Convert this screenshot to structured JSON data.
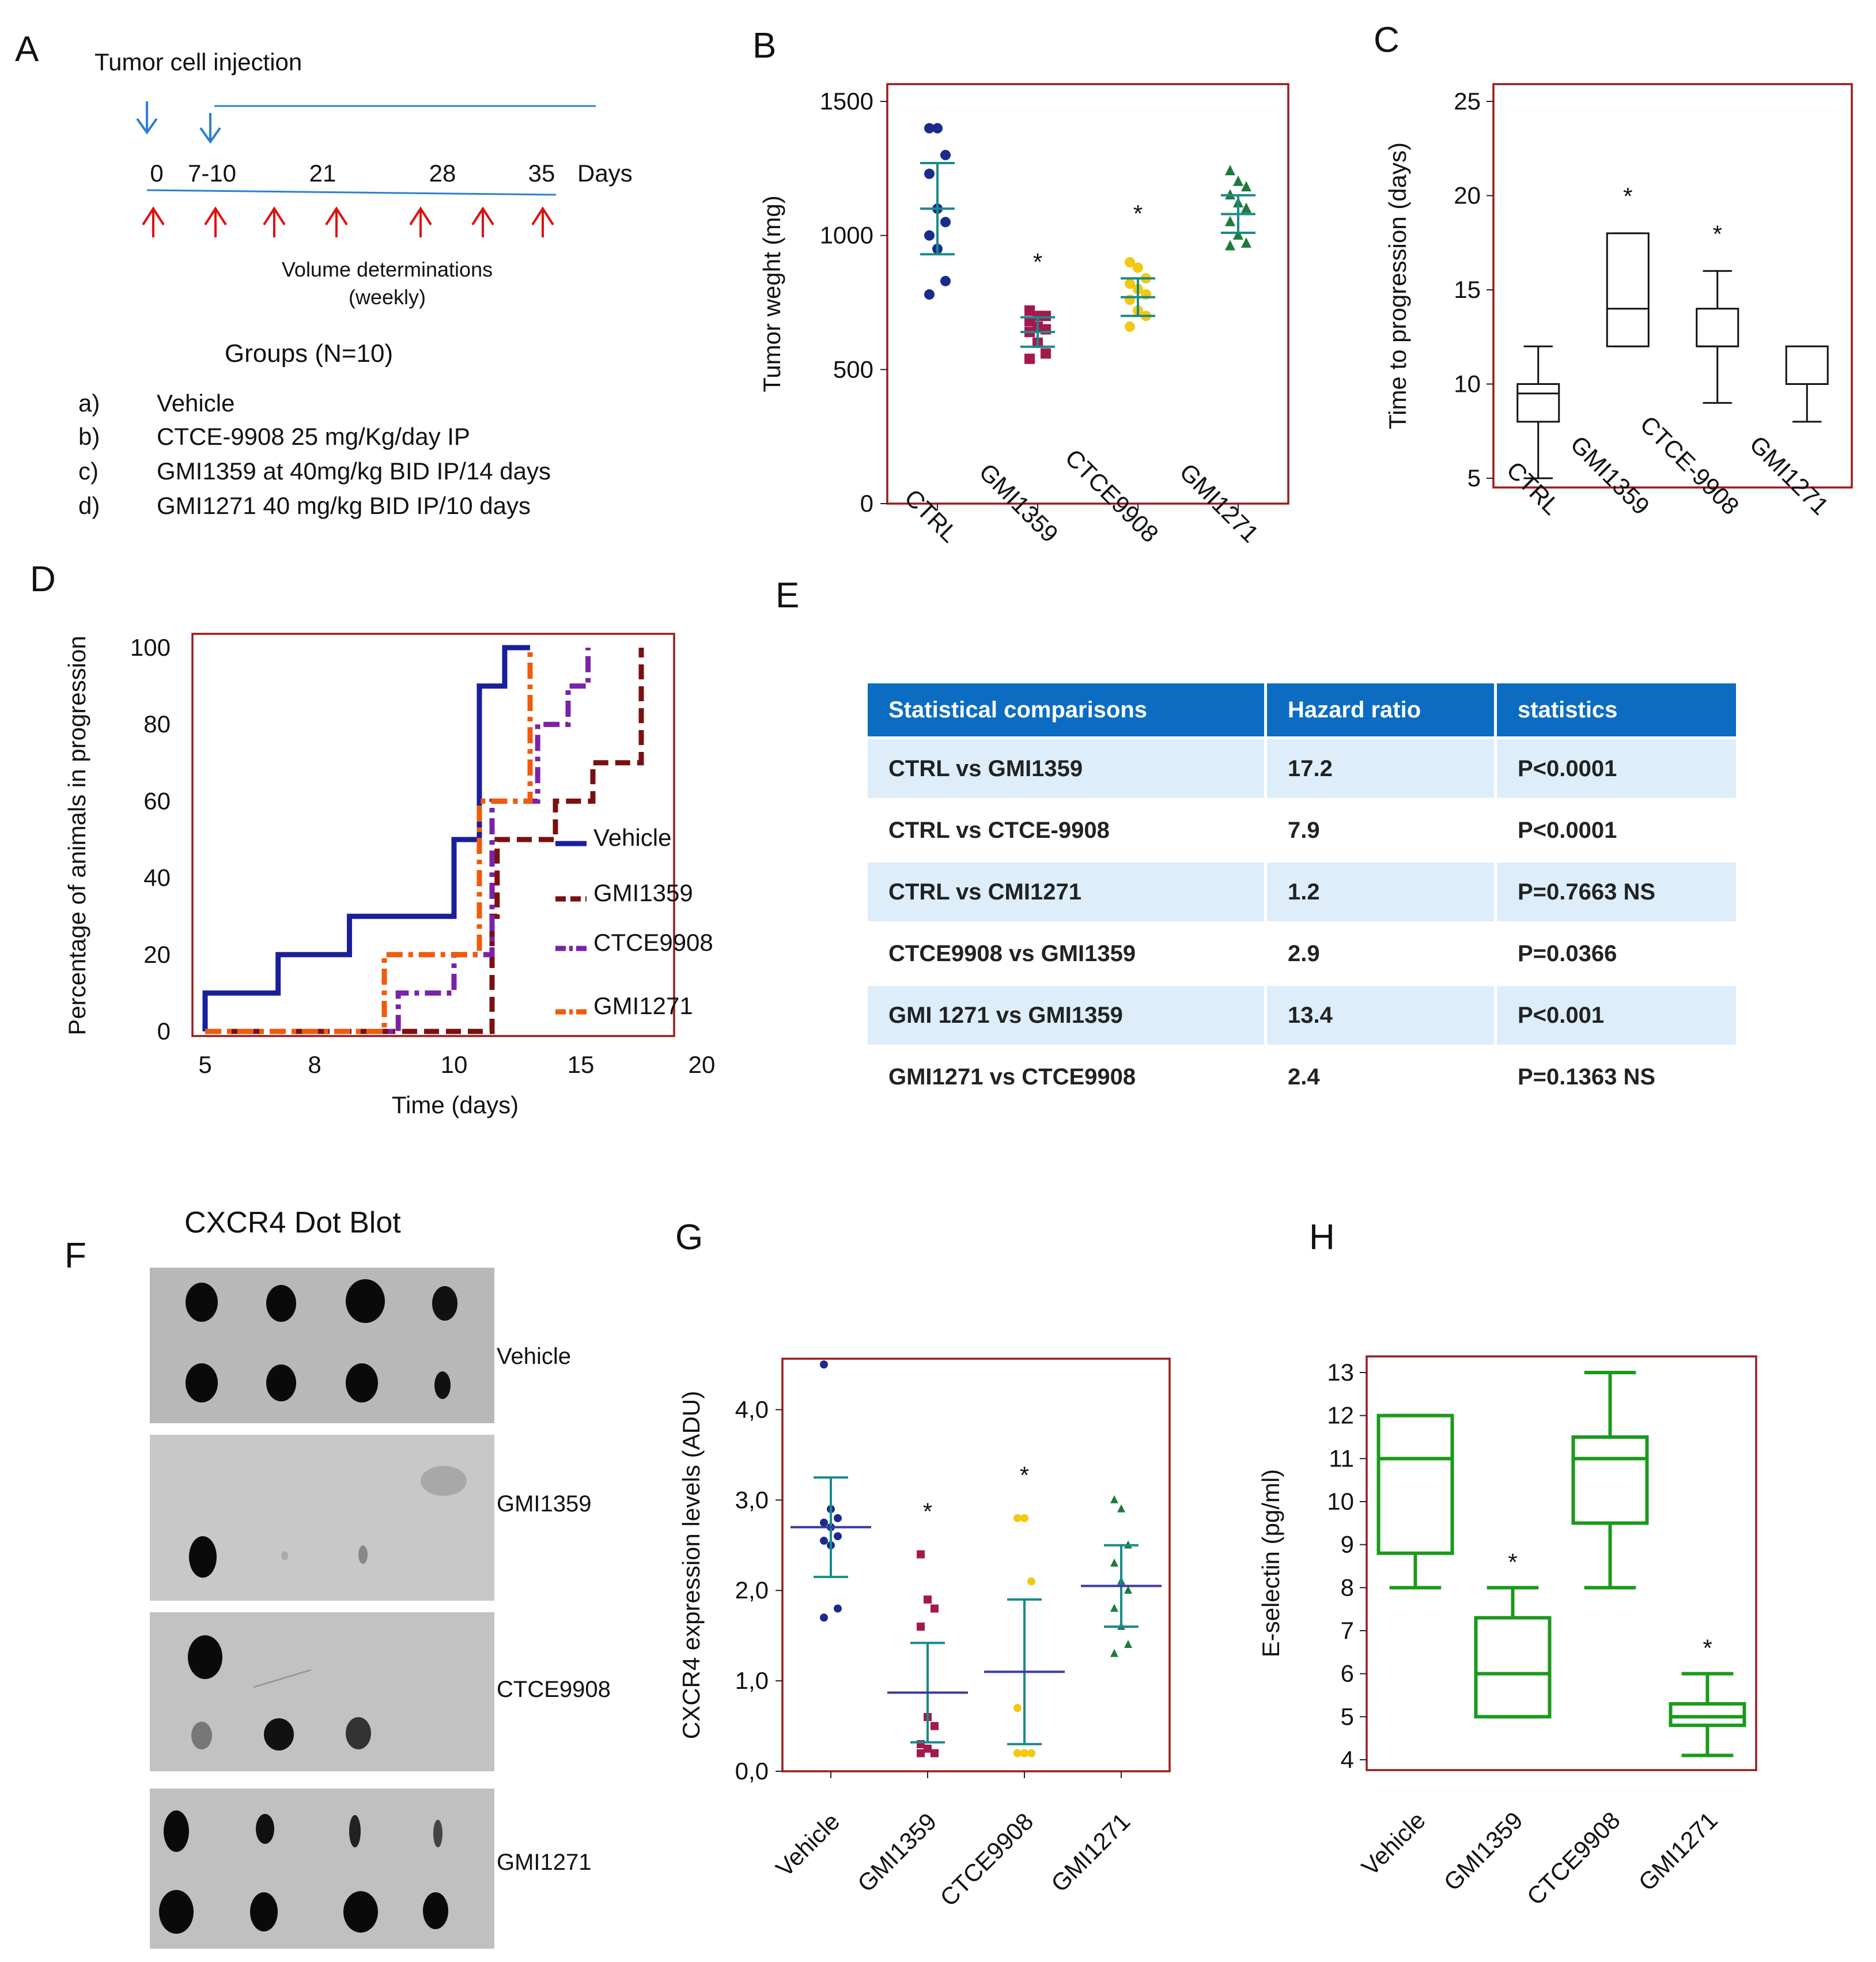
{
  "panelA": {
    "letter": "A",
    "injection_label": "Tumor cell injection",
    "timepoints": [
      "0",
      "7-10",
      "21",
      "28",
      "35"
    ],
    "days_label": "Days",
    "volume_label_1": "Volume determinations",
    "volume_label_2": "(weekly)",
    "groups_title": "Groups (N=10)",
    "groups": [
      {
        "key": "a)",
        "text": "Vehicle"
      },
      {
        "key": "b)",
        "text": "CTCE-9908 25 mg/Kg/day IP"
      },
      {
        "key": "c)",
        "text": "GMI1359 at 40mg/kg BID IP/14 days"
      },
      {
        "key": "d)",
        "text": "GMI1271 40 mg/kg BID IP/10 days"
      }
    ],
    "colors": {
      "timeline": "#2a7fd4",
      "injection_arrow": "#2a7fd4",
      "volume_arrow": "#e01010"
    }
  },
  "panelE": {
    "letter": "E",
    "headers": [
      "Statistical  comparisons",
      "Hazard ratio",
      "statistics"
    ],
    "rows": [
      [
        "CTRL vs GMI1359",
        "17.2",
        "P<0.0001"
      ],
      [
        "CTRL vs CTCE-9908",
        "7.9",
        "P<0.0001"
      ],
      [
        "CTRL vs CMI1271",
        "1.2",
        "P=0.7663 NS"
      ],
      [
        "CTCE9908 vs GMI1359",
        "2.9",
        "P=0.0366"
      ],
      [
        "GMI 1271 vs GMI1359",
        "13.4",
        "P<0.001"
      ],
      [
        "GMI1271 vs CTCE9908",
        "2.4",
        "P=0.1363 NS"
      ]
    ]
  },
  "panelF": {
    "letter": "F",
    "title": "CXCR4 Dot Blot",
    "labels": [
      "Vehicle",
      "GMI1359",
      "CTCE9908",
      "GMI1271"
    ]
  },
  "chart_data": [
    {
      "panel": "B",
      "type": "scatter",
      "ylabel": "Tumor weght (mg)",
      "ylim": [
        0,
        1500
      ],
      "yticks": [
        0,
        500,
        1000,
        1500
      ],
      "categories": [
        "CTRL",
        "GMI1359",
        "CTCE9908",
        "GMI1271"
      ],
      "colors": [
        "#1a2b8c",
        "#a3194d",
        "#f2c811",
        "#1f7a3c"
      ],
      "markers": [
        "circle",
        "square",
        "circle",
        "triangle"
      ],
      "points": [
        [
          1400,
          1400,
          1300,
          1230,
          1100,
          1050,
          1000,
          950,
          830,
          780
        ],
        [
          720,
          700,
          700,
          680,
          660,
          650,
          640,
          600,
          560,
          540
        ],
        [
          900,
          880,
          840,
          820,
          800,
          780,
          760,
          720,
          700,
          660
        ],
        [
          1240,
          1200,
          1180,
          1150,
          1120,
          1100,
          1050,
          1000,
          970,
          960
        ]
      ],
      "mean": [
        1100,
        640,
        770,
        1080
      ],
      "sd": [
        170,
        55,
        70,
        70
      ],
      "significance": [
        "",
        "*",
        "*",
        ""
      ],
      "bar_color": "#1a8a8a"
    },
    {
      "panel": "C",
      "type": "box",
      "ylabel": "Time to progression (days)",
      "ylim": [
        5,
        25
      ],
      "yticks": [
        5,
        10,
        15,
        20,
        25
      ],
      "categories": [
        "CTRL",
        "GMI1359",
        "CTCE-9908",
        "GMI1271"
      ],
      "boxes": [
        {
          "min": 5,
          "q1": 8,
          "median": 9.5,
          "q3": 10,
          "max": 12
        },
        {
          "min": 12,
          "q1": 12,
          "median": 14,
          "q3": 18,
          "max": 18
        },
        {
          "min": 9,
          "q1": 12,
          "median": 12,
          "q3": 14,
          "max": 16
        },
        {
          "min": 8,
          "q1": 10,
          "median": 10,
          "q3": 12,
          "max": 12
        }
      ],
      "significance": [
        "",
        "*",
        "*",
        ""
      ],
      "color": "#111111"
    },
    {
      "panel": "D",
      "type": "line",
      "xlabel": "Time (days)",
      "ylabel": "Percentage of animals in progression",
      "xticks": [
        "5",
        "8",
        "10",
        "15",
        "20"
      ],
      "yticks": [
        0,
        20,
        40,
        60,
        80,
        100
      ],
      "xlim": [
        4.8,
        20
      ],
      "ylim": [
        0,
        100
      ],
      "series": [
        {
          "name": "Vehicle",
          "color": "#1a1f99",
          "dash": "solid",
          "x": [
            5,
            5,
            7,
            7,
            8.5,
            8.5,
            10,
            10,
            11,
            11,
            12,
            12,
            13
          ],
          "y": [
            0,
            10,
            10,
            20,
            20,
            30,
            30,
            50,
            50,
            90,
            90,
            100,
            100
          ]
        },
        {
          "name": "GMI1359",
          "color": "#7a1010",
          "dash": "longdash",
          "x": [
            5,
            11.5,
            11.5,
            11.7,
            11.7,
            12.5,
            12.5,
            14,
            14,
            15.5,
            15.5,
            16.5,
            16.5,
            17.5,
            17.5
          ],
          "y": [
            0,
            0,
            30,
            30,
            50,
            50,
            50,
            50,
            60,
            60,
            70,
            70,
            70,
            70,
            100
          ]
        },
        {
          "name": "CTCE9908",
          "color": "#7a22aa",
          "dash": "dashdot",
          "x": [
            5,
            9.2,
            9.2,
            10,
            10,
            11.5,
            11.5,
            12.2,
            12.2,
            13.3,
            13.3,
            14.5,
            14.5,
            15.3,
            15.3
          ],
          "y": [
            0,
            0,
            10,
            10,
            20,
            20,
            60,
            60,
            60,
            60,
            80,
            80,
            90,
            90,
            100
          ]
        },
        {
          "name": "GMI1271",
          "color": "#f05a0a",
          "dash": "dashdot",
          "x": [
            5,
            9,
            9,
            11,
            11,
            13,
            13
          ],
          "y": [
            0,
            0,
            20,
            20,
            60,
            60,
            100
          ]
        }
      ]
    },
    {
      "panel": "G",
      "type": "scatter",
      "ylabel": "CXCR4 expression levels (ADU)",
      "ylim": [
        0,
        4.5
      ],
      "yticks": [
        0.0,
        1.0,
        2.0,
        3.0,
        4.0
      ],
      "ytick_labels": [
        "0,0",
        "1,0",
        "2,0",
        "3,0",
        "4,0"
      ],
      "categories": [
        "Vehicle",
        "GMI1359",
        "CTCE9908",
        "GMI1271"
      ],
      "colors": [
        "#1a2b8c",
        "#a3194d",
        "#f2c811",
        "#1f7a3c"
      ],
      "markers": [
        "circle",
        "square",
        "circle",
        "triangle"
      ],
      "points": [
        [
          4.5,
          2.9,
          2.8,
          2.75,
          2.7,
          2.6,
          2.55,
          2.5,
          1.8,
          1.7
        ],
        [
          2.4,
          1.9,
          1.8,
          1.6,
          0.6,
          0.5,
          0.3,
          0.25,
          0.2,
          0.2
        ],
        [
          2.8,
          2.8,
          2.1,
          0.7,
          0.2,
          0.2,
          0.2,
          0.2,
          0.2,
          0.2
        ],
        [
          3.0,
          2.9,
          2.5,
          2.3,
          2.1,
          2.0,
          1.8,
          1.6,
          1.4,
          1.3
        ]
      ],
      "mean": [
        2.7,
        0.87,
        1.1,
        2.05
      ],
      "sd": [
        0.55,
        0.55,
        0.8,
        0.45
      ],
      "significance": [
        "",
        "*",
        "*",
        ""
      ],
      "bar_color": "#1a8a8a",
      "mean_color": "#3a3aa0"
    },
    {
      "panel": "H",
      "type": "box",
      "ylabel": "E-selectin (pg/ml)",
      "ylim": [
        4,
        13
      ],
      "yticks": [
        4,
        5,
        6,
        7,
        8,
        9,
        10,
        11,
        12,
        13
      ],
      "categories": [
        "Vehicle",
        "GMI1359",
        "CTCE9908",
        "GMI1271"
      ],
      "boxes": [
        {
          "min": 8,
          "q1": 8.8,
          "median": 11,
          "q3": 12,
          "max": 12
        },
        {
          "min": 5,
          "q1": 5,
          "median": 6,
          "q3": 7.3,
          "max": 8
        },
        {
          "min": 8,
          "q1": 9.5,
          "median": 11,
          "q3": 11.5,
          "max": 13
        },
        {
          "min": 4.1,
          "q1": 4.8,
          "median": 5,
          "q3": 5.3,
          "max": 6
        }
      ],
      "significance": [
        "",
        "*",
        "",
        "*"
      ],
      "color": "#1a9a1a"
    }
  ]
}
